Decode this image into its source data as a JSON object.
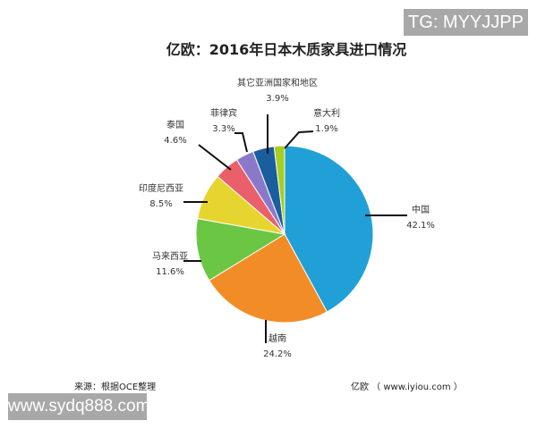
{
  "watermark_top": "TG: MYYJJPP",
  "watermark_bottom": "www.sydq888.com",
  "footer": {
    "source": "来源：根据OCE整理",
    "credit": "亿欧 （ www.iyiou.com ）"
  },
  "chart_data": {
    "type": "pie",
    "title": "亿欧：2016年日本木质家具进口情况",
    "unit": "%",
    "start": "12 o'clock, clockwise",
    "slices": [
      {
        "label": "中国",
        "value": 42.1,
        "value_label": "42.1%",
        "color": "#20a0d6"
      },
      {
        "label": "越南",
        "value": 24.2,
        "value_label": "24.2%",
        "color": "#f28c26"
      },
      {
        "label": "马来西亚",
        "value": 11.6,
        "value_label": "11.6%",
        "color": "#6bc644"
      },
      {
        "label": "印度尼西亚",
        "value": 8.5,
        "value_label": "8.5%",
        "color": "#e7d52f"
      },
      {
        "label": "泰国",
        "value": 4.6,
        "value_label": "4.6%",
        "color": "#e9606b"
      },
      {
        "label": "菲律宾",
        "value": 3.3,
        "value_label": "3.3%",
        "color": "#8a79c9"
      },
      {
        "label": "其它亚洲国家和地区",
        "value": 3.9,
        "value_label": "3.9%",
        "color": "#1a5e9e"
      },
      {
        "label": "意大利",
        "value": 1.9,
        "value_label": "1.9%",
        "color": "#a5cf22"
      }
    ]
  }
}
